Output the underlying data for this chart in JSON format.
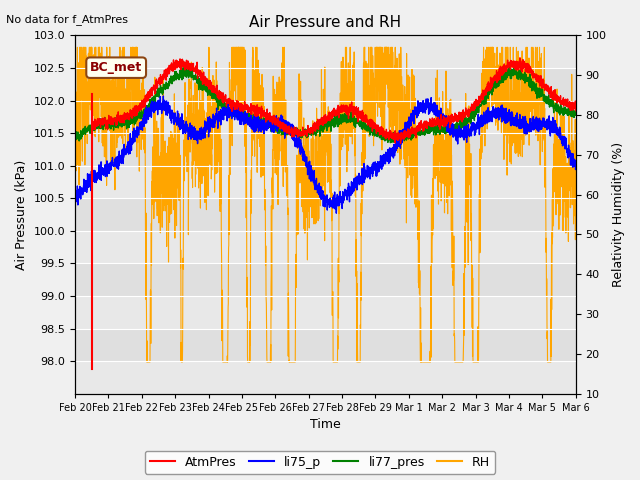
{
  "title": "Air Pressure and RH",
  "no_data_text": "No data for f_AtmPres",
  "xlabel": "Time",
  "ylabel_left": "Air Pressure (kPa)",
  "ylabel_right": "Relativity Humidity (%)",
  "ylim_left": [
    97.5,
    103.0
  ],
  "ylim_right": [
    10,
    100
  ],
  "yticks_left": [
    98.0,
    98.5,
    99.0,
    99.5,
    100.0,
    100.5,
    101.0,
    101.5,
    102.0,
    102.5,
    103.0
  ],
  "yticks_right": [
    10,
    20,
    30,
    40,
    50,
    60,
    70,
    80,
    90,
    100
  ],
  "fig_bg": "#f0f0f0",
  "plot_bg": "#e8e8e8",
  "grid_color": "#ffffff",
  "legend_labels": [
    "AtmPres",
    "li75_p",
    "li77_pres",
    "RH"
  ],
  "legend_colors": [
    "red",
    "blue",
    "green",
    "orange"
  ],
  "box_text": "BC_met",
  "box_facecolor": "#fffff0",
  "box_edgecolor": "#8B4513",
  "box_textcolor": "#8B0000",
  "tick_labels": [
    "Feb 20",
    "Feb 21",
    "Feb 22",
    "Feb 23",
    "Feb 24",
    "Feb 25",
    "Feb 26",
    "Feb 27",
    "Feb 28",
    "Feb 29",
    "Mar 1",
    "Mar 2",
    "Mar 3",
    "Mar 4",
    "Mar 5",
    "Mar 6"
  ],
  "tick_positions": [
    0,
    1,
    2,
    3,
    4,
    5,
    6,
    7,
    8,
    9,
    10,
    11,
    12,
    13,
    14,
    15
  ],
  "xlim": [
    0,
    15
  ]
}
